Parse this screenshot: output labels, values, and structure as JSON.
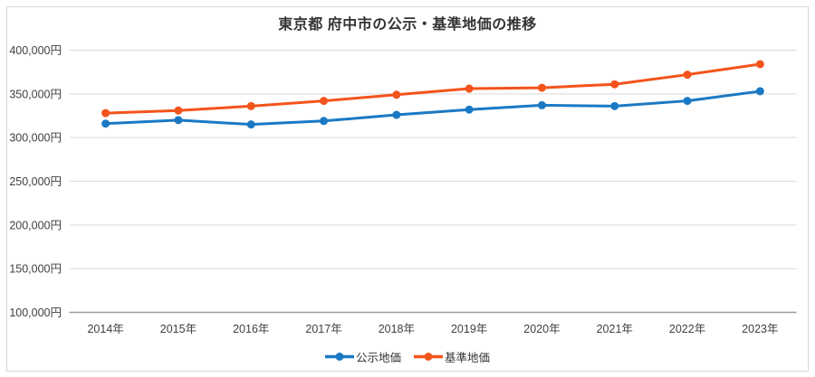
{
  "title": "東京都 府中市の公示・基準地価の推移",
  "chart_data": {
    "type": "line",
    "categories": [
      "2014年",
      "2015年",
      "2016年",
      "2017年",
      "2018年",
      "2019年",
      "2020年",
      "2021年",
      "2022年",
      "2023年"
    ],
    "series": [
      {
        "name": "公示地価",
        "color": "#1b79c4",
        "values": [
          316000,
          320000,
          315000,
          319000,
          326000,
          332000,
          337000,
          336000,
          342000,
          353000
        ]
      },
      {
        "name": "基準地価",
        "color": "#f3541c",
        "values": [
          328000,
          331000,
          336000,
          342000,
          349000,
          356000,
          357000,
          361000,
          372000,
          384000
        ]
      }
    ],
    "ylim": [
      100000,
      400000
    ],
    "yticks": [
      {
        "value": 400000,
        "label": "400,000円"
      },
      {
        "value": 350000,
        "label": "350,000円"
      },
      {
        "value": 300000,
        "label": "300,000円"
      },
      {
        "value": 250000,
        "label": "250,000円"
      },
      {
        "value": 200000,
        "label": "200,000円"
      },
      {
        "value": 150000,
        "label": "150,000円"
      },
      {
        "value": 100000,
        "label": "100,000円"
      }
    ],
    "unit": "円",
    "grid": "horizontal",
    "legend_position": "bottom"
  },
  "style": {
    "grid_color": "#d9d9d9",
    "axis_color": "#9a9a9a",
    "text_color": "#404040",
    "title_color": "#333333",
    "border_color": "#d6d6d6",
    "background": "#ffffff"
  }
}
